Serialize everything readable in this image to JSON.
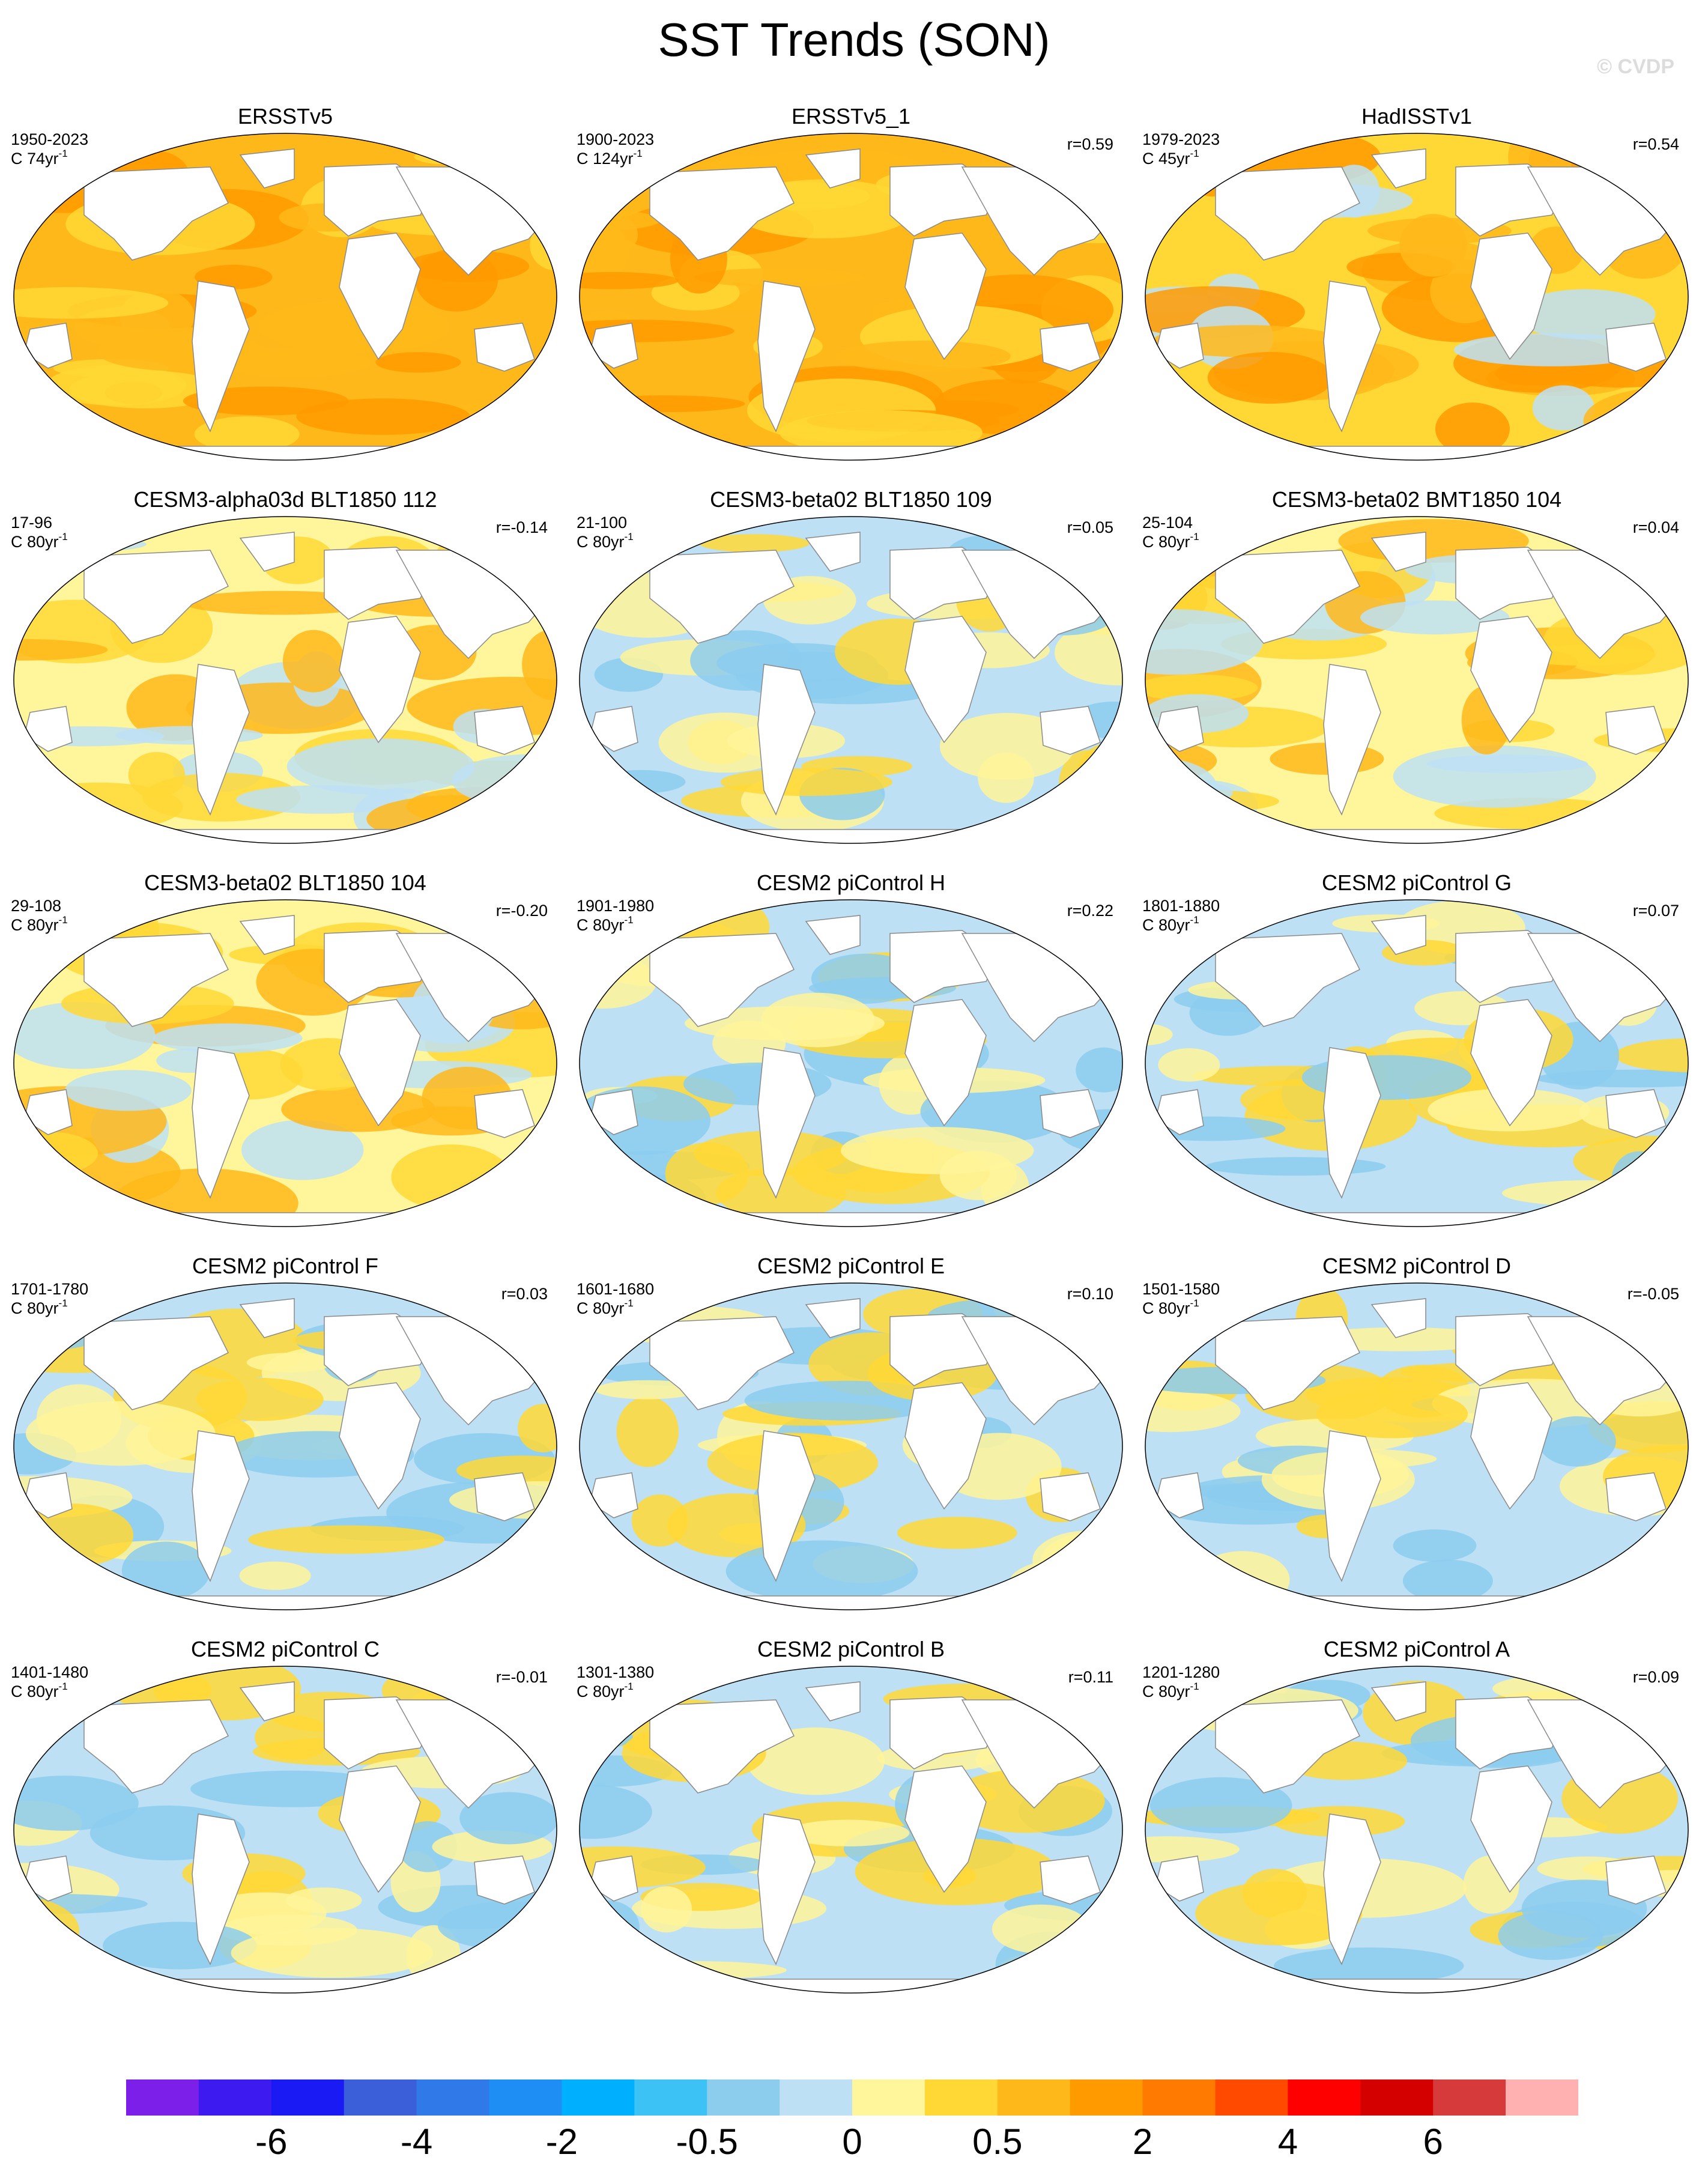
{
  "figure": {
    "title": "SST Trends (SON)",
    "watermark": "© CVDP"
  },
  "panels": [
    {
      "title": "ERSSTv5",
      "years": "1950-2023",
      "trend_prefix": "C ",
      "trend_value": "74yr",
      "trend_exp": "-1",
      "corr": "",
      "warmth": 3
    },
    {
      "title": "ERSSTv5_1",
      "years": "1900-2023",
      "trend_prefix": "C ",
      "trend_value": "124yr",
      "trend_exp": "-1",
      "corr": "r=0.59",
      "warmth": 3
    },
    {
      "title": "HadISSTv1",
      "years": "1979-2023",
      "trend_prefix": "C ",
      "trend_value": "45yr",
      "trend_exp": "-1",
      "corr": "r=0.54",
      "warmth": 2
    },
    {
      "title": "CESM3-alpha03d BLT1850 112",
      "years": "17-96",
      "trend_prefix": "C ",
      "trend_value": "80yr",
      "trend_exp": "-1",
      "corr": "r=-0.14",
      "warmth": 1
    },
    {
      "title": "CESM3-beta02 BLT1850 109",
      "years": "21-100",
      "trend_prefix": "C ",
      "trend_value": "80yr",
      "trend_exp": "-1",
      "corr": "r=0.05",
      "warmth": 0
    },
    {
      "title": "CESM3-beta02 BMT1850 104",
      "years": "25-104",
      "trend_prefix": "C ",
      "trend_value": "80yr",
      "trend_exp": "-1",
      "corr": "r=0.04",
      "warmth": 1
    },
    {
      "title": "CESM3-beta02 BLT1850 104",
      "years": "29-108",
      "trend_prefix": "C ",
      "trend_value": "80yr",
      "trend_exp": "-1",
      "corr": "r=-0.20",
      "warmth": 1
    },
    {
      "title": "CESM2 piControl H",
      "years": "1901-1980",
      "trend_prefix": "C ",
      "trend_value": "80yr",
      "trend_exp": "-1",
      "corr": "r=0.22",
      "warmth": 0
    },
    {
      "title": "CESM2 piControl G",
      "years": "1801-1880",
      "trend_prefix": "C ",
      "trend_value": "80yr",
      "trend_exp": "-1",
      "corr": "r=0.07",
      "warmth": 0
    },
    {
      "title": "CESM2 piControl F",
      "years": "1701-1780",
      "trend_prefix": "C ",
      "trend_value": "80yr",
      "trend_exp": "-1",
      "corr": "r=0.03",
      "warmth": 0
    },
    {
      "title": "CESM2 piControl E",
      "years": "1601-1680",
      "trend_prefix": "C ",
      "trend_value": "80yr",
      "trend_exp": "-1",
      "corr": "r=0.10",
      "warmth": 0
    },
    {
      "title": "CESM2 piControl D",
      "years": "1501-1580",
      "trend_prefix": "C ",
      "trend_value": "80yr",
      "trend_exp": "-1",
      "corr": "r=-0.05",
      "warmth": 0
    },
    {
      "title": "CESM2 piControl C",
      "years": "1401-1480",
      "trend_prefix": "C ",
      "trend_value": "80yr",
      "trend_exp": "-1",
      "corr": "r=-0.01",
      "warmth": 0
    },
    {
      "title": "CESM2 piControl B",
      "years": "1301-1380",
      "trend_prefix": "C ",
      "trend_value": "80yr",
      "trend_exp": "-1",
      "corr": "r=0.11",
      "warmth": 0
    },
    {
      "title": "CESM2 piControl A",
      "years": "1201-1280",
      "trend_prefix": "C ",
      "trend_value": "80yr",
      "trend_exp": "-1",
      "corr": "r=0.09",
      "warmth": 0
    }
  ],
  "colors": {
    "land": "#ffffff",
    "coast": "#8a8a8a",
    "outline": "#000000",
    "colorbar": [
      "#7c1fe8",
      "#3d1af0",
      "#1a1af5",
      "#3a5fd9",
      "#2f7ae8",
      "#1e8ef5",
      "#00b0ff",
      "#3cc2f5",
      "#8ccdee",
      "#bde0f5",
      "#fff59a",
      "#ffd835",
      "#ffb81a",
      "#ff9a00",
      "#ff7a00",
      "#ff4a00",
      "#ff0000",
      "#d40000",
      "#d63a3a",
      "#ffb0b0"
    ]
  },
  "colorbar": {
    "labels": [
      "-6",
      "-4",
      "-2",
      "-0.5",
      "0",
      "0.5",
      "2",
      "4",
      "6"
    ]
  }
}
